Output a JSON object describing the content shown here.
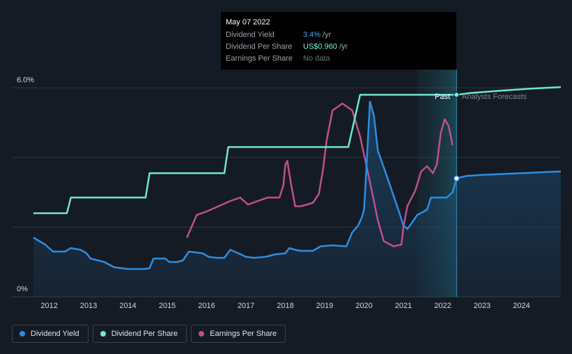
{
  "tooltip": {
    "date": "May 07 2022",
    "rows": [
      {
        "label": "Dividend Yield",
        "value": "3.4%",
        "unit": "/yr"
      },
      {
        "label": "Dividend Per Share",
        "value": "US$0.960",
        "unit": "/yr"
      },
      {
        "label": "Earnings Per Share",
        "value": "No data",
        "unit": ""
      }
    ]
  },
  "labels": {
    "past": "Past",
    "forecast": "Analysts Forecasts"
  },
  "legend": [
    {
      "label": "Dividend Yield",
      "color": "#2e8de0"
    },
    {
      "label": "Dividend Per Share",
      "color": "#6ee8cf"
    },
    {
      "label": "Earnings Per Share",
      "color": "#c04f90"
    }
  ],
  "colors": {
    "yield": "#2e8de0",
    "dps": "#6ee8cf",
    "eps": "#c04f90",
    "grid": "#2e3542",
    "background": "#151b24"
  },
  "chart_data": {
    "type": "line",
    "x_ticks": [
      "2012",
      "2013",
      "2014",
      "2015",
      "2016",
      "2017",
      "2018",
      "2019",
      "2020",
      "2021",
      "2022",
      "2023",
      "2024"
    ],
    "y_ticks": [
      "0%",
      "6.0%"
    ],
    "ylim": [
      0,
      6
    ],
    "xlim": [
      2011.6,
      2025.0
    ],
    "past_end": 2022.35,
    "forecast_band_start": 2021.35,
    "series": [
      {
        "name": "Dividend Yield",
        "points": [
          [
            2011.6,
            1.7
          ],
          [
            2011.9,
            1.5
          ],
          [
            2012.1,
            1.3
          ],
          [
            2012.4,
            1.3
          ],
          [
            2012.55,
            1.4
          ],
          [
            2012.8,
            1.35
          ],
          [
            2012.95,
            1.25
          ],
          [
            2013.05,
            1.1
          ],
          [
            2013.4,
            1.0
          ],
          [
            2013.65,
            0.85
          ],
          [
            2014.0,
            0.8
          ],
          [
            2014.4,
            0.8
          ],
          [
            2014.55,
            0.82
          ],
          [
            2014.65,
            1.1
          ],
          [
            2014.95,
            1.1
          ],
          [
            2015.05,
            1.0
          ],
          [
            2015.25,
            1.0
          ],
          [
            2015.4,
            1.05
          ],
          [
            2015.55,
            1.3
          ],
          [
            2015.9,
            1.25
          ],
          [
            2016.05,
            1.15
          ],
          [
            2016.25,
            1.12
          ],
          [
            2016.45,
            1.12
          ],
          [
            2016.6,
            1.35
          ],
          [
            2016.75,
            1.28
          ],
          [
            2017.0,
            1.15
          ],
          [
            2017.2,
            1.12
          ],
          [
            2017.5,
            1.15
          ],
          [
            2017.75,
            1.22
          ],
          [
            2018.0,
            1.25
          ],
          [
            2018.1,
            1.4
          ],
          [
            2018.25,
            1.35
          ],
          [
            2018.4,
            1.32
          ],
          [
            2018.7,
            1.32
          ],
          [
            2018.9,
            1.45
          ],
          [
            2019.2,
            1.48
          ],
          [
            2019.55,
            1.45
          ],
          [
            2019.7,
            1.85
          ],
          [
            2019.85,
            2.05
          ],
          [
            2019.95,
            2.3
          ],
          [
            2020.0,
            2.5
          ],
          [
            2020.05,
            3.5
          ],
          [
            2020.15,
            5.6
          ],
          [
            2020.25,
            5.2
          ],
          [
            2020.35,
            4.2
          ],
          [
            2020.6,
            3.4
          ],
          [
            2020.9,
            2.4
          ],
          [
            2021.0,
            2.05
          ],
          [
            2021.1,
            1.95
          ],
          [
            2021.2,
            2.1
          ],
          [
            2021.35,
            2.35
          ],
          [
            2021.6,
            2.5
          ],
          [
            2021.7,
            2.85
          ],
          [
            2021.85,
            2.85
          ],
          [
            2022.1,
            2.85
          ],
          [
            2022.25,
            3.0
          ],
          [
            2022.35,
            3.4
          ],
          [
            2022.6,
            3.47
          ],
          [
            2023.0,
            3.5
          ],
          [
            2024.0,
            3.55
          ],
          [
            2025.0,
            3.6
          ]
        ]
      },
      {
        "name": "Dividend Per Share",
        "points": [
          [
            2011.6,
            2.4
          ],
          [
            2012.45,
            2.4
          ],
          [
            2012.55,
            2.85
          ],
          [
            2014.45,
            2.85
          ],
          [
            2014.55,
            3.55
          ],
          [
            2016.45,
            3.55
          ],
          [
            2016.55,
            4.3
          ],
          [
            2019.6,
            4.3
          ],
          [
            2019.9,
            5.8
          ],
          [
            2022.35,
            5.8
          ],
          [
            2022.7,
            5.85
          ],
          [
            2023.5,
            5.92
          ],
          [
            2024.3,
            5.98
          ],
          [
            2025.0,
            6.02
          ]
        ]
      },
      {
        "name": "Earnings Per Share",
        "points": [
          [
            2015.5,
            1.7
          ],
          [
            2015.75,
            2.35
          ],
          [
            2016.0,
            2.45
          ],
          [
            2016.3,
            2.6
          ],
          [
            2016.6,
            2.75
          ],
          [
            2016.85,
            2.85
          ],
          [
            2017.05,
            2.65
          ],
          [
            2017.3,
            2.75
          ],
          [
            2017.55,
            2.85
          ],
          [
            2017.85,
            2.85
          ],
          [
            2017.95,
            3.2
          ],
          [
            2018.0,
            3.8
          ],
          [
            2018.05,
            3.9
          ],
          [
            2018.15,
            3.2
          ],
          [
            2018.25,
            2.6
          ],
          [
            2018.4,
            2.6
          ],
          [
            2018.7,
            2.7
          ],
          [
            2018.85,
            2.95
          ],
          [
            2018.95,
            3.6
          ],
          [
            2019.05,
            4.5
          ],
          [
            2019.2,
            5.35
          ],
          [
            2019.45,
            5.55
          ],
          [
            2019.7,
            5.35
          ],
          [
            2019.9,
            4.6
          ],
          [
            2020.15,
            3.3
          ],
          [
            2020.35,
            2.2
          ],
          [
            2020.5,
            1.6
          ],
          [
            2020.75,
            1.45
          ],
          [
            2020.95,
            1.5
          ],
          [
            2021.0,
            2.0
          ],
          [
            2021.1,
            2.6
          ],
          [
            2021.3,
            3.05
          ],
          [
            2021.45,
            3.6
          ],
          [
            2021.6,
            3.75
          ],
          [
            2021.75,
            3.55
          ],
          [
            2021.85,
            3.8
          ],
          [
            2021.95,
            4.7
          ],
          [
            2022.05,
            5.1
          ],
          [
            2022.15,
            4.9
          ],
          [
            2022.25,
            4.35
          ]
        ]
      }
    ]
  }
}
